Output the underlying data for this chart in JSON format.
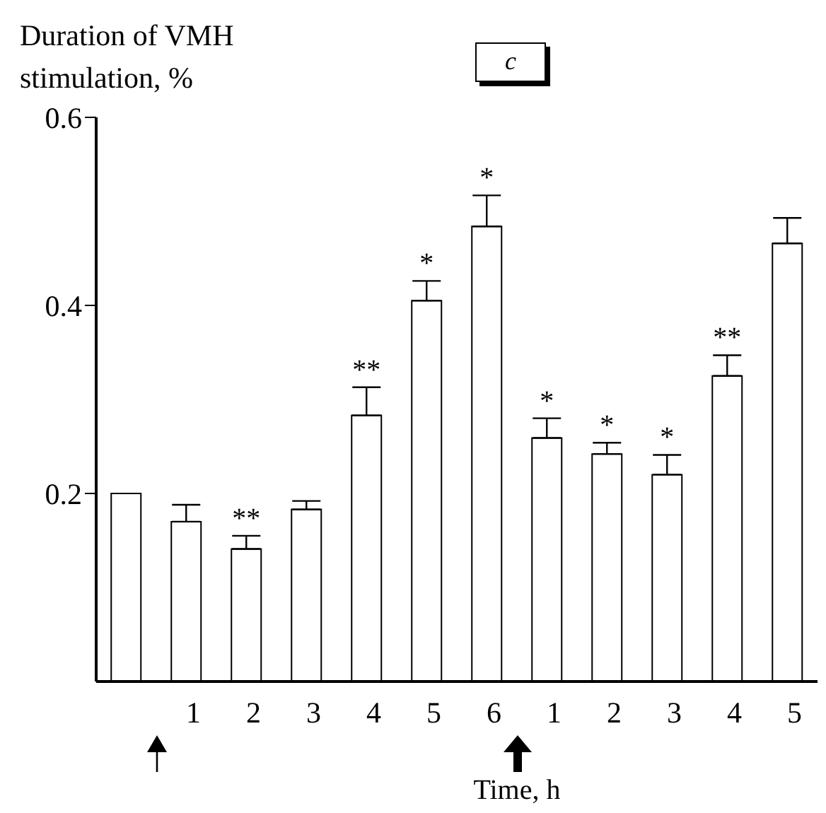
{
  "chart_data": {
    "type": "bar",
    "title": "c",
    "ylabel": "Duration of VMH stimulation, %",
    "xlabel": "Time, h",
    "categories": [
      null,
      "1",
      "2",
      "3",
      "4",
      "5",
      "6",
      "1",
      "2",
      "3",
      "4",
      "5"
    ],
    "values": [
      0.2,
      0.17,
      0.141,
      0.183,
      0.283,
      0.405,
      0.484,
      0.259,
      0.242,
      0.22,
      0.325,
      0.466
    ],
    "errors": [
      null,
      [
        0.17,
        0.188
      ],
      [
        0.141,
        0.155
      ],
      [
        0.183,
        0.192
      ],
      [
        0.283,
        0.313
      ],
      [
        0.405,
        0.426
      ],
      [
        0.484,
        0.517
      ],
      [
        0.259,
        0.28
      ],
      [
        0.242,
        0.254
      ],
      [
        0.22,
        0.241
      ],
      [
        0.325,
        0.347
      ],
      [
        0.466,
        0.493
      ]
    ],
    "value_labels": [
      null,
      null,
      "**",
      null,
      "**",
      "*",
      "*",
      "*",
      "*",
      "*",
      "**",
      null
    ],
    "color": "#ffffff",
    "ylim": [
      0,
      0.6
    ],
    "yticks": [
      0.2,
      0.4,
      0.6
    ],
    "grid": false,
    "legend": false
  }
}
